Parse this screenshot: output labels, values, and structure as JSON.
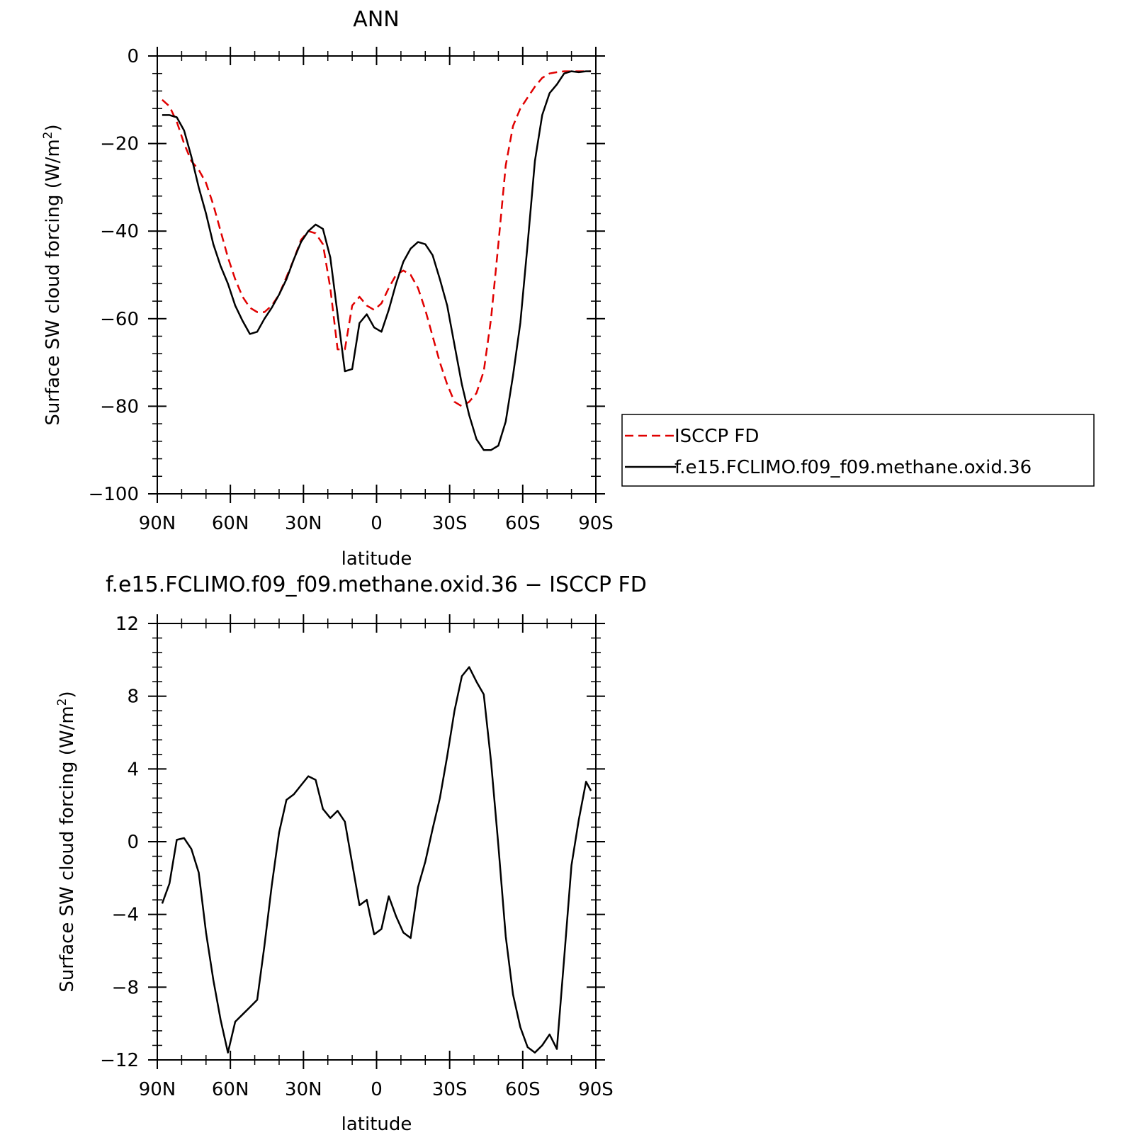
{
  "chart_data": [
    {
      "type": "line",
      "title": "ANN",
      "xlabel": "latitude",
      "ylabel": "Surface SW cloud forcing (W/m",
      "ylabel_sup": "2",
      "ylabel_end": ")",
      "xlim": [
        90,
        -90
      ],
      "ylim": [
        -100,
        0
      ],
      "xticks": [
        90,
        60,
        30,
        0,
        -30,
        -60,
        -90
      ],
      "xtick_labels": [
        "90N",
        "60N",
        "30N",
        "0",
        "30S",
        "60S",
        "90S"
      ],
      "yticks": [
        0,
        -20,
        -40,
        -60,
        -80,
        -100
      ],
      "ytick_labels": [
        "0",
        "−20",
        "−40",
        "−60",
        "−80",
        "−100"
      ],
      "legend": {
        "placement": "right",
        "entries": [
          {
            "label": "ISCCP FD",
            "color": "#e00000",
            "dash": "dashed"
          },
          {
            "label": "f.e15.FCLIMO.f09_f09.methane.oxid.36",
            "color": "#000000",
            "dash": "solid"
          }
        ]
      },
      "series": [
        {
          "name": "ISCCP FD",
          "color": "#e00000",
          "dash": "dashed",
          "x": [
            88,
            85,
            82,
            79,
            76,
            73,
            70,
            67,
            64,
            61,
            58,
            55,
            52,
            49,
            46,
            43,
            40,
            37,
            34,
            31,
            28,
            25,
            22,
            19,
            16,
            13,
            10,
            7,
            4,
            1,
            -2,
            -5,
            -8,
            -11,
            -14,
            -17,
            -20,
            -23,
            -26,
            -29,
            -32,
            -35,
            -38,
            -41,
            -44,
            -47,
            -50,
            -53,
            -56,
            -59,
            -62,
            -65,
            -68,
            -71,
            -74,
            -77,
            -80,
            -83,
            -86,
            -88
          ],
          "y": [
            -10,
            -11.5,
            -15,
            -20,
            -24,
            -26,
            -29,
            -34,
            -40,
            -46,
            -51,
            -55,
            -57.5,
            -58.5,
            -58.5,
            -57,
            -54.5,
            -50.5,
            -46.5,
            -42,
            -40,
            -40.5,
            -43,
            -53,
            -67,
            -67,
            -57,
            -55,
            -57,
            -58,
            -56.5,
            -53,
            -50,
            -49,
            -50,
            -53,
            -58,
            -64,
            -70,
            -75,
            -79,
            -80,
            -79,
            -77,
            -72,
            -60,
            -43,
            -25,
            -16,
            -12,
            -9.5,
            -7,
            -5,
            -4,
            -3.7,
            -3.5,
            -3.5,
            -3.5,
            -3.5,
            -3.5
          ]
        },
        {
          "name": "f.e15.FCLIMO.f09_f09.methane.oxid.36",
          "color": "#000000",
          "dash": "solid",
          "x": [
            88,
            85,
            82,
            79,
            76,
            73,
            70,
            67,
            64,
            61,
            58,
            55,
            52,
            49,
            46,
            43,
            40,
            37,
            34,
            31,
            28,
            25,
            22,
            19,
            16,
            13,
            10,
            7,
            4,
            1,
            -2,
            -5,
            -8,
            -11,
            -14,
            -17,
            -20,
            -23,
            -26,
            -29,
            -32,
            -35,
            -38,
            -41,
            -44,
            -47,
            -50,
            -53,
            -56,
            -59,
            -62,
            -65,
            -68,
            -71,
            -74,
            -77,
            -80,
            -83,
            -86,
            -88
          ],
          "y": [
            -13.5,
            -13.5,
            -14,
            -17,
            -23,
            -30,
            -36,
            -43,
            -48,
            -52,
            -57,
            -60.5,
            -63.5,
            -63,
            -60,
            -57.5,
            -54.5,
            -51,
            -46.5,
            -42.5,
            -40,
            -38.5,
            -39.5,
            -46,
            -59,
            -72,
            -71.5,
            -61,
            -59,
            -62,
            -63,
            -58,
            -52,
            -47,
            -44,
            -42.5,
            -43,
            -45.5,
            -51,
            -57,
            -66,
            -75,
            -82,
            -87.5,
            -90,
            -90,
            -89,
            -83.5,
            -73,
            -61,
            -43,
            -24,
            -13.5,
            -8.5,
            -6.5,
            -4,
            -3.5,
            -3.7,
            -3.5,
            -3.5
          ]
        }
      ]
    },
    {
      "type": "line",
      "title": "f.e15.FCLIMO.f09_f09.methane.oxid.36 − ISCCP FD",
      "xlabel": "latitude",
      "ylabel": "Surface SW cloud forcing (W/m",
      "ylabel_sup": "2",
      "ylabel_end": ")",
      "xlim": [
        90,
        -90
      ],
      "ylim": [
        -12,
        12
      ],
      "xticks": [
        90,
        60,
        30,
        0,
        -30,
        -60,
        -90
      ],
      "xtick_labels": [
        "90N",
        "60N",
        "30N",
        "0",
        "30S",
        "60S",
        "90S"
      ],
      "yticks": [
        12,
        8,
        4,
        0,
        -4,
        -8,
        -12
      ],
      "ytick_labels": [
        "12",
        "8",
        "4",
        "0",
        "−4",
        "−8",
        "−12"
      ],
      "series": [
        {
          "color": "#000000",
          "dash": "solid",
          "x": [
            88,
            85,
            82,
            79,
            76,
            73,
            70,
            67,
            64,
            61,
            58,
            55,
            52,
            49,
            46,
            43,
            40,
            37,
            34,
            31,
            28,
            25,
            22,
            19,
            16,
            13,
            10,
            7,
            4,
            1,
            -2,
            -5,
            -8,
            -11,
            -14,
            -17,
            -20,
            -23,
            -26,
            -29,
            -32,
            -35,
            -38,
            -41,
            -44,
            -47,
            -50,
            -53,
            -56,
            -59,
            -62,
            -65,
            -68,
            -71,
            -74,
            -77,
            -80,
            -83,
            -86,
            -88
          ],
          "y": [
            -3.4,
            -2.3,
            0.1,
            0.2,
            -0.4,
            -1.7,
            -5,
            -7.6,
            -9.8,
            -11.6,
            -9.9,
            -9.5,
            -9.1,
            -8.7,
            -5.7,
            -2.4,
            0.5,
            2.3,
            2.6,
            3.1,
            3.6,
            3.4,
            1.8,
            1.3,
            1.7,
            1.1,
            -1.2,
            -3.5,
            -3.2,
            -5.1,
            -4.8,
            -3,
            -4.1,
            -5,
            -5.3,
            -2.5,
            -1.1,
            0.7,
            2.4,
            4.7,
            7.2,
            9.1,
            9.6,
            8.8,
            8.1,
            4.4,
            -0.2,
            -5.2,
            -8.4,
            -10.2,
            -11.3,
            -11.6,
            -11.2,
            -10.6,
            -11.4,
            -6.4,
            -1.3,
            1.2,
            3.3,
            2.8
          ]
        }
      ]
    }
  ]
}
